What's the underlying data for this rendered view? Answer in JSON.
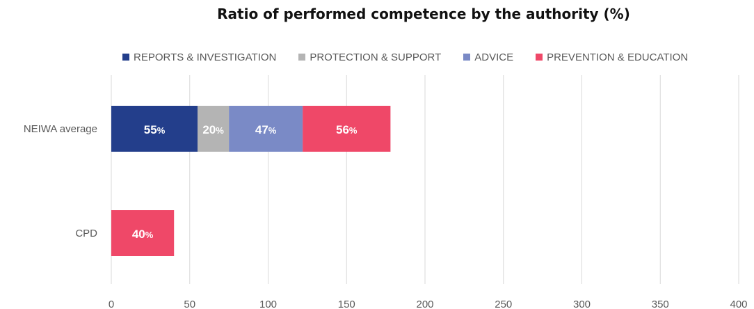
{
  "chart_data": {
    "type": "bar",
    "orientation": "horizontal",
    "stacked": true,
    "title": "Ratio of performed competence by the authority (%)",
    "categories": [
      "NEIWA average",
      "CPD"
    ],
    "series": [
      {
        "name": "REPORTS & INVESTIGATION",
        "color": "#233E8B",
        "values": [
          55,
          0
        ],
        "labels": [
          "55",
          ""
        ]
      },
      {
        "name": "PROTECTION & SUPPORT",
        "color": "#B4B4B4",
        "values": [
          20,
          0
        ],
        "labels": [
          "20",
          ""
        ]
      },
      {
        "name": "ADVICE",
        "color": "#7A8AC6",
        "values": [
          47,
          0
        ],
        "labels": [
          "47",
          ""
        ]
      },
      {
        "name": "PREVENTION & EDUCATION",
        "color": "#EF4868",
        "values": [
          56,
          40
        ],
        "labels": [
          "56",
          "40"
        ]
      }
    ],
    "label_suffix": "%",
    "xlim": [
      0,
      400
    ],
    "xticks": [
      0,
      50,
      100,
      150,
      200,
      250,
      300,
      350,
      400
    ],
    "grid": "vertical",
    "legend_position": "top"
  }
}
